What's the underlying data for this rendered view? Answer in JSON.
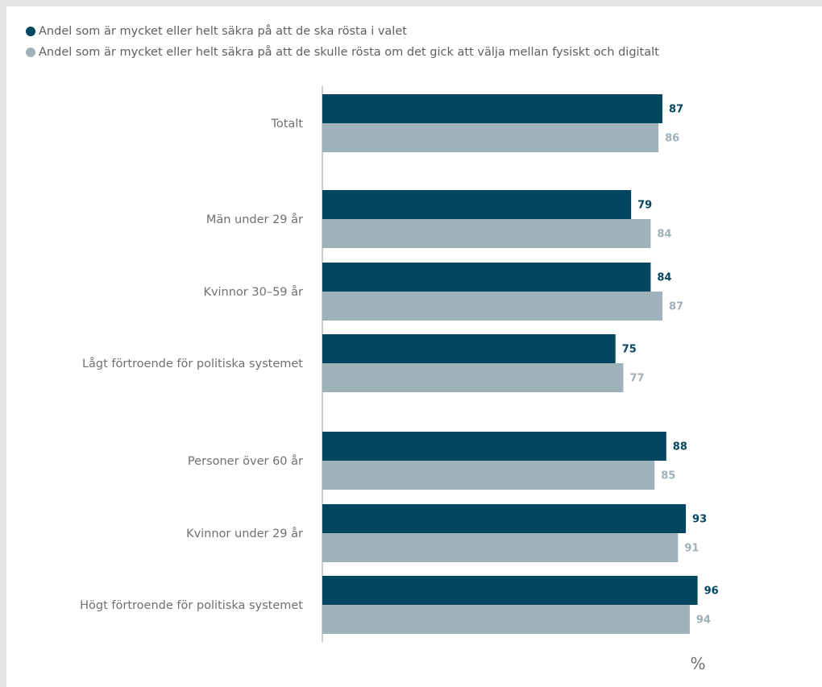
{
  "chart_data": {
    "type": "bar",
    "orientation": "horizontal",
    "categories": [
      "Totalt",
      "Män under 29 år",
      "Kvinnor 30–59 år",
      "Lågt förtroende för politiska systemet",
      "Personer över 60 år",
      "Kvinnor under 29 år",
      "Högt förtroende för politiska systemet"
    ],
    "series": [
      {
        "name": "Andel som är mycket eller helt säkra på att de ska rösta i valet",
        "color": "#03465f",
        "values": [
          87,
          79,
          84,
          75,
          88,
          93,
          96
        ]
      },
      {
        "name": "Andel som är mycket eller helt säkra på att de skulle rösta om det gick att välja mellan fysiskt och digitalt",
        "color": "#9fb1b9",
        "values": [
          86,
          84,
          87,
          77,
          85,
          91,
          94
        ]
      }
    ],
    "unit": "%",
    "legend_position": "top-left",
    "grid": false,
    "data_labels": true
  }
}
